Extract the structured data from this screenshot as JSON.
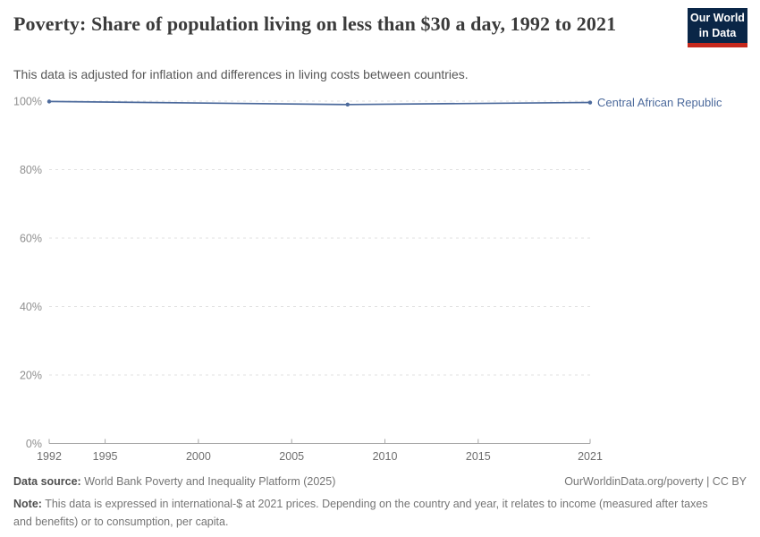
{
  "header": {
    "title": "Poverty: Share of population living on less than $30 a day, 1992 to 2021",
    "subtitle": "This data is adjusted for inflation and differences in living costs between countries.",
    "logo": {
      "line1": "Our World",
      "line2": "in Data"
    }
  },
  "chart_data": {
    "type": "line",
    "title": "Poverty: Share of population living on less than $30 a day, 1992 to 2021",
    "subtitle": "This data is adjusted for inflation and differences in living costs between countries.",
    "xlabel": "",
    "ylabel": "",
    "xlim": [
      1992,
      2021
    ],
    "ylim": [
      0,
      100
    ],
    "grid": "horizontal-dashed",
    "legend_position": "label-at-line-end",
    "x_ticks": [
      {
        "value": 1992,
        "label": "1992"
      },
      {
        "value": 1995,
        "label": "1995"
      },
      {
        "value": 2000,
        "label": "2000"
      },
      {
        "value": 2005,
        "label": "2005"
      },
      {
        "value": 2010,
        "label": "2010"
      },
      {
        "value": 2015,
        "label": "2015"
      },
      {
        "value": 2021,
        "label": "2021"
      }
    ],
    "y_ticks": [
      {
        "value": 0,
        "label": "0%"
      },
      {
        "value": 20,
        "label": "20%"
      },
      {
        "value": 40,
        "label": "40%"
      },
      {
        "value": 60,
        "label": "60%"
      },
      {
        "value": 80,
        "label": "80%"
      },
      {
        "value": 100,
        "label": "100%"
      }
    ],
    "series": [
      {
        "name": "Central African Republic",
        "color": "#4C6A9C",
        "points": [
          {
            "x": 1992,
            "y": 99.9
          },
          {
            "x": 2008,
            "y": 99.0
          },
          {
            "x": 2021,
            "y": 99.6
          }
        ]
      }
    ]
  },
  "footer": {
    "source_label": "Data source:",
    "source_value": "World Bank Poverty and Inequality Platform (2025)",
    "credit": "OurWorldinData.org/poverty | CC BY",
    "note_label": "Note:",
    "note_value": "This data is expressed in international-$ at 2021 prices. Depending on the country and year, it relates to income (measured after taxes and benefits) or to consumption, per capita."
  },
  "colors": {
    "accent_line": "#4C6A9C",
    "logo_bg": "#0A2647",
    "logo_accent": "#C5281C",
    "grid": "#E2E2E2",
    "axis": "#A6A6A6",
    "tick_label_x": "#6E6E6E",
    "tick_label_y": "#8F8F8F"
  }
}
